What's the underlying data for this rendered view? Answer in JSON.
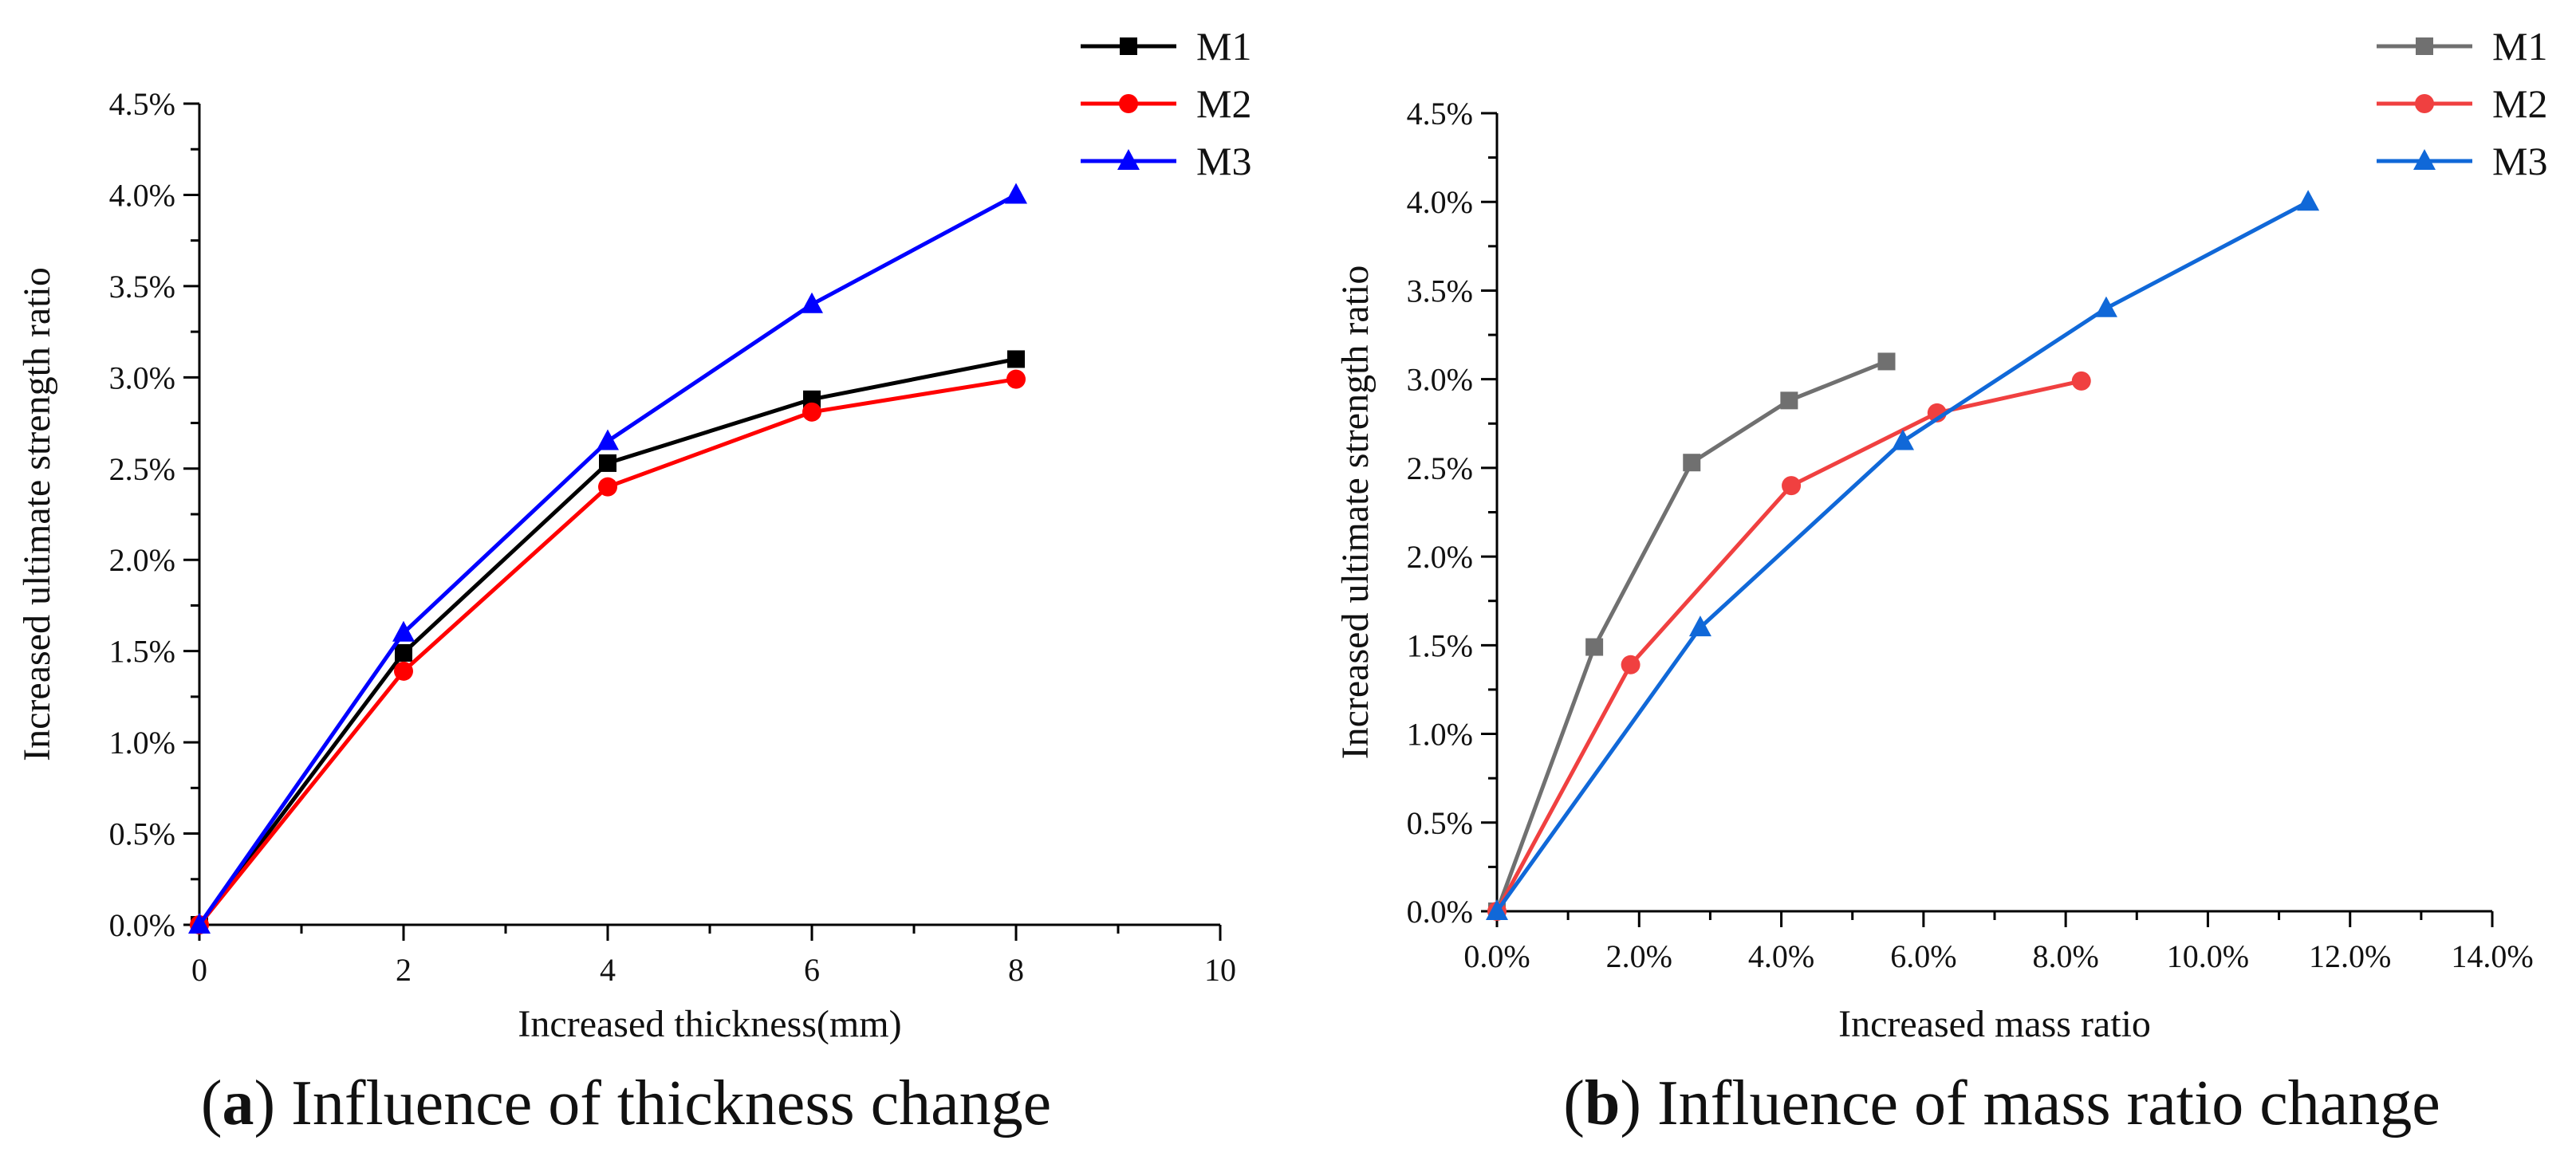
{
  "chart_data": [
    {
      "panel": "a",
      "type": "line",
      "caption_letter": "a",
      "caption_text": "Influence of thickness change",
      "xlabel": "Increased thickness(mm)",
      "ylabel": "Increased ultimate strength ratio",
      "xlim": [
        0,
        10
      ],
      "ylim": [
        0,
        0.045
      ],
      "xticks": [
        0,
        2,
        4,
        6,
        8,
        10
      ],
      "xtick_labels": [
        "0",
        "2",
        "4",
        "6",
        "8",
        "10"
      ],
      "yticks": [
        0,
        0.005,
        0.01,
        0.015,
        0.02,
        0.025,
        0.03,
        0.035,
        0.04,
        0.045
      ],
      "ytick_labels": [
        "0.0%",
        "0.5%",
        "1.0%",
        "1.5%",
        "2.0%",
        "2.5%",
        "3.0%",
        "3.5%",
        "4.0%",
        "4.5%"
      ],
      "legend_position": "top-right-outside",
      "series": [
        {
          "name": "M1",
          "color": "#000000",
          "marker": "square",
          "x": [
            0,
            2,
            4,
            6,
            8
          ],
          "y": [
            0,
            0.0149,
            0.0253,
            0.0288,
            0.031
          ]
        },
        {
          "name": "M2",
          "color": "#ff0000",
          "marker": "circle",
          "x": [
            0,
            2,
            4,
            6,
            8
          ],
          "y": [
            0,
            0.0139,
            0.024,
            0.0281,
            0.0299
          ]
        },
        {
          "name": "M3",
          "color": "#0000ff",
          "marker": "triangle",
          "x": [
            0,
            2,
            4,
            6,
            8
          ],
          "y": [
            0,
            0.016,
            0.0265,
            0.034,
            0.04
          ]
        }
      ]
    },
    {
      "panel": "b",
      "type": "line",
      "caption_letter": "b",
      "caption_text": "Influence of mass ratio change",
      "xlabel": "Increased mass ratio",
      "ylabel": "Increased ultimate strength ratio",
      "xlim": [
        0,
        0.14
      ],
      "ylim": [
        0,
        0.045
      ],
      "xticks": [
        0,
        0.02,
        0.04,
        0.06,
        0.08,
        0.1,
        0.12,
        0.14
      ],
      "xtick_labels": [
        "0.0%",
        "2.0%",
        "4.0%",
        "6.0%",
        "8.0%",
        "10.0%",
        "12.0%",
        "14.0%"
      ],
      "yticks": [
        0,
        0.005,
        0.01,
        0.015,
        0.02,
        0.025,
        0.03,
        0.035,
        0.04,
        0.045
      ],
      "ytick_labels": [
        "0.0%",
        "0.5%",
        "1.0%",
        "1.5%",
        "2.0%",
        "2.5%",
        "3.0%",
        "3.5%",
        "4.0%",
        "4.5%"
      ],
      "legend_position": "top-right-outside",
      "series": [
        {
          "name": "M1",
          "color": "#707070",
          "marker": "square",
          "x": [
            0,
            0.0137,
            0.0274,
            0.0411,
            0.0548
          ],
          "y": [
            0,
            0.0149,
            0.0253,
            0.0288,
            0.031
          ]
        },
        {
          "name": "M2",
          "color": "#f04040",
          "marker": "circle",
          "x": [
            0,
            0.0188,
            0.0414,
            0.0619,
            0.0822
          ],
          "y": [
            0,
            0.0139,
            0.024,
            0.0281,
            0.0299
          ]
        },
        {
          "name": "M3",
          "color": "#1068d8",
          "marker": "triangle",
          "x": [
            0,
            0.0286,
            0.0571,
            0.0857,
            0.1141
          ],
          "y": [
            0,
            0.016,
            0.0265,
            0.034,
            0.04
          ]
        }
      ]
    }
  ]
}
